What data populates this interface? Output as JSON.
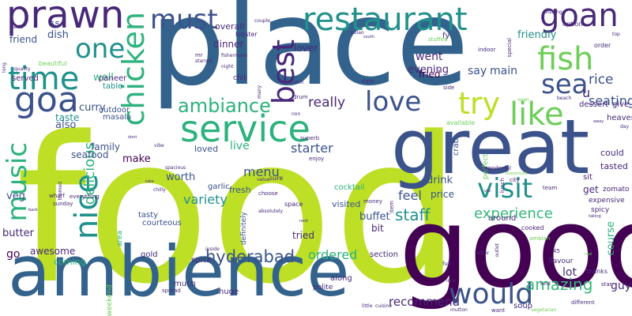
{
  "colors": {
    "background": "#ffffff",
    "lime": "#bddf26",
    "green": "#2db27d",
    "teal": "#21918c",
    "blue": "#33638d",
    "indigo": "#3b528b",
    "purple": "#482878",
    "dark": "#440154",
    "mint": "#6ece58",
    "aqua": "#35b779"
  },
  "words": [
    {
      "text": "food",
      "color": "lime"
    },
    {
      "text": "place",
      "color": "blue"
    },
    {
      "text": "good",
      "color": "dark"
    },
    {
      "text": "great",
      "color": "indigo"
    },
    {
      "text": "ambience",
      "color": "blue"
    },
    {
      "text": "service",
      "color": "green"
    },
    {
      "text": "restaurant",
      "color": "teal"
    },
    {
      "text": "prawn",
      "color": "purple"
    },
    {
      "text": "must",
      "color": "indigo"
    },
    {
      "text": "goan",
      "color": "purple"
    },
    {
      "text": "best",
      "color": "purple"
    },
    {
      "text": "fish",
      "color": "mint"
    },
    {
      "text": "one",
      "color": "teal"
    },
    {
      "text": "time",
      "color": "teal"
    },
    {
      "text": "goa",
      "color": "indigo"
    },
    {
      "text": "chicken",
      "color": "green"
    },
    {
      "text": "try",
      "color": "lime"
    },
    {
      "text": "like",
      "color": "mint"
    },
    {
      "text": "sea",
      "color": "indigo"
    },
    {
      "text": "love",
      "color": "indigo"
    },
    {
      "text": "visit",
      "color": "teal"
    },
    {
      "text": "music",
      "color": "green"
    },
    {
      "text": "nice",
      "color": "teal"
    },
    {
      "text": "would",
      "color": "indigo"
    },
    {
      "text": "ambiance",
      "color": "green"
    },
    {
      "text": "hyderabad",
      "color": "indigo"
    },
    {
      "text": "amazing",
      "color": "aqua"
    },
    {
      "text": "experience",
      "color": "aqua"
    },
    {
      "text": "staff",
      "color": "teal"
    },
    {
      "text": "really",
      "color": "purple"
    },
    {
      "text": "seating",
      "color": "indigo"
    },
    {
      "text": "rice",
      "color": "indigo"
    },
    {
      "text": "recommend",
      "color": "purple"
    },
    {
      "text": "ordered",
      "color": "green"
    },
    {
      "text": "delicious",
      "color": "green"
    },
    {
      "text": "variety",
      "color": "teal"
    },
    {
      "text": "starter",
      "color": "indigo"
    },
    {
      "text": "friendly",
      "color": "teal"
    },
    {
      "text": "curry",
      "color": "indigo"
    },
    {
      "text": "dish",
      "color": "indigo"
    },
    {
      "text": "friend",
      "color": "indigo"
    },
    {
      "text": "well",
      "color": "green"
    },
    {
      "text": "butter",
      "color": "purple"
    },
    {
      "text": "veg",
      "color": "indigo"
    },
    {
      "text": "go",
      "color": "dark"
    },
    {
      "text": "awesome",
      "color": "purple"
    },
    {
      "text": "coming",
      "color": "green"
    },
    {
      "text": "also",
      "color": "indigo"
    },
    {
      "text": "menu",
      "color": "indigo"
    },
    {
      "text": "live",
      "color": "green"
    },
    {
      "text": "worth",
      "color": "indigo"
    },
    {
      "text": "make",
      "color": "dark"
    },
    {
      "text": "family",
      "color": "indigo"
    },
    {
      "text": "seafood",
      "color": "indigo"
    },
    {
      "text": "taste",
      "color": "teal"
    },
    {
      "text": "feel",
      "color": "indigo"
    },
    {
      "text": "say",
      "color": "indigo"
    },
    {
      "text": "main",
      "color": "indigo"
    },
    {
      "text": "went",
      "color": "purple"
    },
    {
      "text": "evening",
      "color": "purple"
    },
    {
      "text": "fried",
      "color": "dark"
    },
    {
      "text": "dinner",
      "color": "purple"
    },
    {
      "text": "overall",
      "color": "purple"
    },
    {
      "text": "lover",
      "color": "purple"
    },
    {
      "text": "buffet",
      "color": "indigo"
    },
    {
      "text": "bit",
      "color": "purple"
    },
    {
      "text": "visited",
      "color": "indigo"
    },
    {
      "text": "tried",
      "color": "purple"
    },
    {
      "text": "loved",
      "color": "indigo"
    },
    {
      "text": "price",
      "color": "indigo"
    },
    {
      "text": "drink",
      "color": "indigo"
    },
    {
      "text": "lot",
      "color": "purple"
    },
    {
      "text": "guy",
      "color": "purple"
    },
    {
      "text": "course",
      "color": "green"
    },
    {
      "text": "u",
      "color": "purple"
    },
    {
      "text": "served",
      "color": "purple"
    },
    {
      "text": "paneer",
      "color": "purple"
    },
    {
      "text": "55",
      "color": "indigo"
    },
    {
      "text": "soup",
      "color": "purple"
    },
    {
      "text": "get",
      "color": "purple"
    },
    {
      "text": "sit",
      "color": "purple"
    },
    {
      "text": "could",
      "color": "purple"
    },
    {
      "text": "tasted",
      "color": "purple"
    },
    {
      "text": "dessert",
      "color": "purple"
    },
    {
      "text": "give",
      "color": "purple"
    },
    {
      "text": "heaven",
      "color": "purple"
    },
    {
      "text": "fresh",
      "color": "indigo"
    },
    {
      "text": "gold",
      "color": "purple"
    },
    {
      "text": "spice",
      "color": "purple"
    },
    {
      "text": "much",
      "color": "purple"
    },
    {
      "text": "huge",
      "color": "purple"
    },
    {
      "text": "along",
      "color": "purple"
    },
    {
      "text": "polite",
      "color": "purple"
    },
    {
      "text": "garlic",
      "color": "indigo"
    },
    {
      "text": "cocktail",
      "color": "green"
    },
    {
      "text": "outdoor",
      "color": "indigo"
    },
    {
      "text": "masala",
      "color": "indigo"
    },
    {
      "text": "crab",
      "color": "indigo"
    },
    {
      "text": "tasty",
      "color": "indigo"
    },
    {
      "text": "courteous",
      "color": "indigo"
    },
    {
      "text": "definitely",
      "color": "indigo"
    },
    {
      "text": "expensive",
      "color": "purple"
    },
    {
      "text": "zomato",
      "color": "purple"
    },
    {
      "text": "spicy",
      "color": "purple"
    },
    {
      "text": "cooked",
      "color": "purple"
    },
    {
      "text": "flavour",
      "color": "purple"
    },
    {
      "text": "thanks",
      "color": "purple"
    },
    {
      "text": "around",
      "color": "purple"
    },
    {
      "text": "section",
      "color": "purple"
    },
    {
      "text": "table",
      "color": "teal"
    },
    {
      "text": "fy",
      "color": "purple"
    },
    {
      "text": "fishermans",
      "color": "purple"
    },
    {
      "text": "lobster",
      "color": "purple"
    },
    {
      "text": "chili",
      "color": "purple"
    },
    {
      "text": "option",
      "color": "purple"
    },
    {
      "text": "order",
      "color": "purple"
    },
    {
      "text": "spread",
      "color": "purple"
    },
    {
      "text": "different",
      "color": "purple"
    },
    {
      "text": "space",
      "color": "purple"
    },
    {
      "text": "choose",
      "color": "purple"
    },
    {
      "text": "absolutely",
      "color": "purple"
    },
    {
      "text": "sure",
      "color": "purple"
    },
    {
      "text": "value",
      "color": "purple"
    },
    {
      "text": "money",
      "color": "purple"
    },
    {
      "text": "superb",
      "color": "purple"
    },
    {
      "text": "available",
      "color": "mint"
    },
    {
      "text": "perfect",
      "color": "mint"
    },
    {
      "text": "beautiful",
      "color": "mint"
    },
    {
      "text": "everything",
      "color": "purple"
    },
    {
      "text": "sunday",
      "color": "purple"
    },
    {
      "text": "wharf",
      "color": "purple"
    },
    {
      "text": "weekend",
      "color": "mint"
    },
    {
      "text": "team",
      "color": "purple"
    },
    {
      "text": "wonderful",
      "color": "purple"
    },
    {
      "text": "city",
      "color": "purple"
    },
    {
      "text": "lunch",
      "color": "purple"
    },
    {
      "text": "enjoy",
      "color": "purple"
    },
    {
      "text": "item",
      "color": "purple"
    },
    {
      "text": "little",
      "color": "purple"
    },
    {
      "text": "cuisine",
      "color": "purple"
    },
    {
      "text": "star",
      "color": "purple"
    },
    {
      "text": "mutton",
      "color": "purple"
    },
    {
      "text": "want",
      "color": "purple"
    },
    {
      "text": "vegetarian",
      "color": "mint"
    },
    {
      "text": "mr",
      "color": "purple"
    },
    {
      "text": "starred",
      "color": "purple"
    },
    {
      "text": "night",
      "color": "purple"
    },
    {
      "text": "couple",
      "color": "purple"
    },
    {
      "text": "pulao",
      "color": "purple"
    },
    {
      "text": "south",
      "color": "purple"
    },
    {
      "text": "stuffed",
      "color": "mint"
    },
    {
      "text": "indoor",
      "color": "purple"
    },
    {
      "text": "special",
      "color": "purple"
    },
    {
      "text": "top",
      "color": "purple"
    },
    {
      "text": "visiting",
      "color": "purple"
    },
    {
      "text": "made",
      "color": "purple"
    },
    {
      "text": "long",
      "color": "purple"
    },
    {
      "text": "quality",
      "color": "purple"
    },
    {
      "text": "side",
      "color": "purple"
    },
    {
      "text": "date",
      "color": "purple"
    },
    {
      "text": "catch",
      "color": "purple"
    },
    {
      "text": "drum",
      "color": "purple"
    },
    {
      "text": "non",
      "color": "purple"
    },
    {
      "text": "many",
      "color": "purple"
    },
    {
      "text": "dont",
      "color": "purple"
    },
    {
      "text": "vibe",
      "color": "purple"
    },
    {
      "text": "take",
      "color": "purple"
    },
    {
      "text": "chilly",
      "color": "purple"
    },
    {
      "text": "spacious",
      "color": "purple"
    },
    {
      "text": "themed",
      "color": "purple"
    },
    {
      "text": "back",
      "color": "purple"
    },
    {
      "text": "area",
      "color": "green"
    },
    {
      "text": "inside",
      "color": "purple"
    },
    {
      "text": "next",
      "color": "purple"
    },
    {
      "text": "full",
      "color": "purple"
    },
    {
      "text": "better",
      "color": "purple"
    },
    {
      "text": "outlet",
      "color": "purple"
    },
    {
      "text": "ambian",
      "color": "mint"
    },
    {
      "text": "taking",
      "color": "purple"
    },
    {
      "text": "kind",
      "color": "purple"
    },
    {
      "text": "beach",
      "color": "purple"
    },
    {
      "text": "day",
      "color": "purple"
    },
    {
      "text": "open",
      "color": "mint"
    },
    {
      "text": "overpriced",
      "color": "mint"
    },
    {
      "text": "visi",
      "color": "purple"
    },
    {
      "text": "45",
      "color": "purple"
    },
    {
      "text": "real",
      "color": "mint"
    },
    {
      "text": "away",
      "color": "purple"
    },
    {
      "text": "look",
      "color": "purple"
    },
    {
      "text": "one2",
      "color": "purple"
    },
    {
      "text": "into",
      "color": "purple"
    }
  ]
}
